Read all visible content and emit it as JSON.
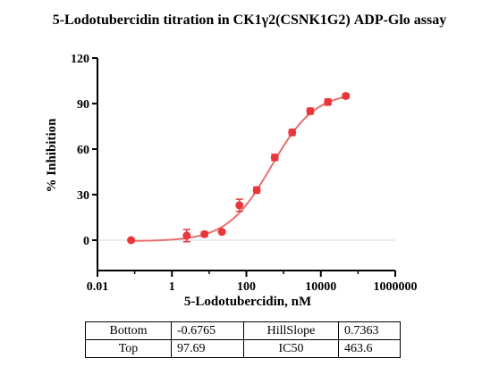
{
  "chart_data": {
    "type": "scatter",
    "title": "5-Lodotubercidin titration in CK1γ2(CSNK1G2) ADP-Glo assay",
    "xlabel": "5-Lodotubercidin, nM",
    "ylabel": "% Inhibition",
    "x_scale": "log",
    "xlim": [
      0.01,
      1000000
    ],
    "ylim": [
      -20,
      120
    ],
    "x_ticks": [
      0.01,
      1,
      100,
      10000,
      1000000
    ],
    "x_tick_labels": [
      "0.01",
      "1",
      "100",
      "10000",
      "1000000"
    ],
    "y_ticks": [
      0,
      30,
      60,
      90,
      120
    ],
    "y_tick_labels": [
      "0",
      "30",
      "60",
      "90",
      "120"
    ],
    "grid": false,
    "color": "#e8363a",
    "curve_color": "#e87070",
    "series": [
      {
        "x": [
          0.08,
          2.5,
          7.5,
          22,
          65,
          190,
          580,
          1700,
          5200,
          15500,
          47000
        ],
        "y": [
          0.0,
          3.0,
          4.0,
          5.5,
          23.0,
          33.0,
          54.5,
          71.0,
          85.0,
          91.0,
          95.0
        ],
        "error": [
          1.0,
          4.0,
          1.5,
          1.0,
          4.0,
          2.0,
          2.0,
          2.0,
          2.0,
          2.0,
          1.5
        ]
      }
    ],
    "fit": {
      "bottom": -0.6765,
      "top": 97.69,
      "hillslope": 0.7363,
      "ic50": 463.6
    }
  },
  "params_table": {
    "rows": [
      [
        "Bottom",
        "-0.6765",
        "HillSlope",
        "0.7363"
      ],
      [
        "Top",
        "97.69",
        "IC50",
        "463.6"
      ]
    ]
  }
}
